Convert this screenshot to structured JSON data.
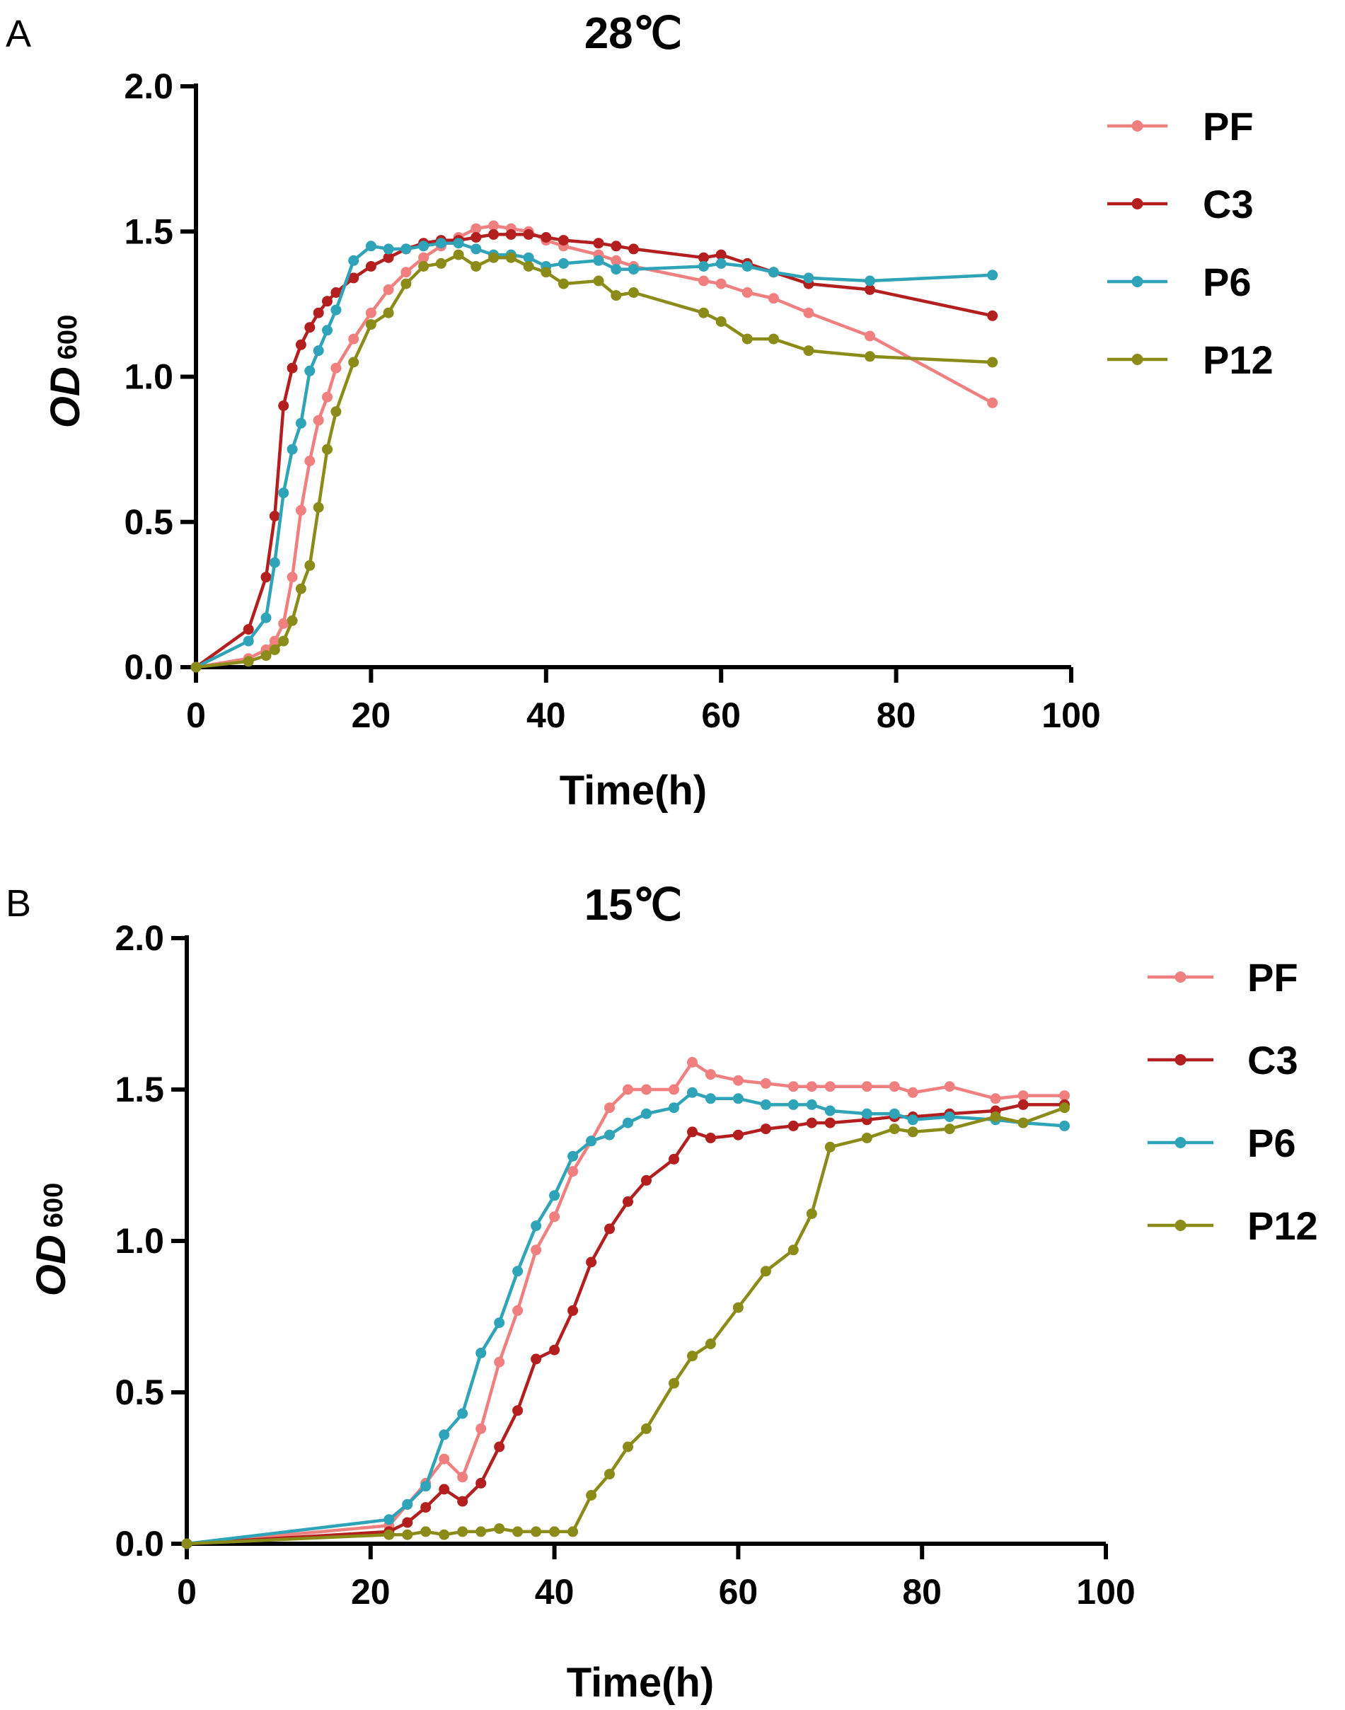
{
  "chart_data": [
    {
      "panel": "A",
      "type": "line",
      "title": "28℃",
      "xlabel": "Time(h)",
      "ylabel_main": "OD",
      "ylabel_sub": "600",
      "xlim": [
        0,
        100
      ],
      "ylim": [
        0,
        2
      ],
      "xticks": [
        "0",
        "20",
        "40",
        "60",
        "80",
        "100"
      ],
      "yticks": [
        "0.0",
        "0.5",
        "1.0",
        "1.5",
        "2.0"
      ],
      "legend": "right",
      "series": [
        {
          "name": "PF",
          "color": "#f08080",
          "x": [
            0,
            6,
            8,
            9,
            10,
            11,
            12,
            13,
            14,
            15,
            16,
            18,
            20,
            22,
            24,
            26,
            28,
            30,
            32,
            34,
            36,
            38,
            40,
            42,
            46,
            48,
            50,
            58,
            60,
            63,
            66,
            70,
            77,
            91
          ],
          "y": [
            0,
            0.03,
            0.06,
            0.09,
            0.15,
            0.31,
            0.54,
            0.71,
            0.85,
            0.93,
            1.03,
            1.13,
            1.22,
            1.3,
            1.36,
            1.41,
            1.45,
            1.48,
            1.51,
            1.52,
            1.51,
            1.5,
            1.47,
            1.45,
            1.42,
            1.4,
            1.38,
            1.33,
            1.32,
            1.29,
            1.27,
            1.22,
            1.14,
            0.91
          ]
        },
        {
          "name": "C3",
          "color": "#b31f1f",
          "x": [
            0,
            6,
            8,
            9,
            10,
            11,
            12,
            13,
            14,
            15,
            16,
            18,
            20,
            22,
            24,
            26,
            28,
            30,
            32,
            34,
            36,
            38,
            40,
            42,
            46,
            48,
            50,
            58,
            60,
            63,
            66,
            70,
            77,
            91
          ],
          "y": [
            0,
            0.13,
            0.31,
            0.52,
            0.9,
            1.03,
            1.11,
            1.17,
            1.22,
            1.26,
            1.29,
            1.34,
            1.38,
            1.41,
            1.44,
            1.46,
            1.47,
            1.47,
            1.48,
            1.49,
            1.49,
            1.49,
            1.48,
            1.47,
            1.46,
            1.45,
            1.44,
            1.41,
            1.42,
            1.39,
            1.36,
            1.32,
            1.3,
            1.21
          ]
        },
        {
          "name": "P6",
          "color": "#2fa3b8",
          "x": [
            0,
            6,
            8,
            9,
            10,
            11,
            12,
            13,
            14,
            15,
            16,
            18,
            20,
            22,
            24,
            26,
            28,
            30,
            32,
            34,
            36,
            38,
            40,
            42,
            46,
            48,
            50,
            58,
            60,
            63,
            66,
            70,
            77,
            91
          ],
          "y": [
            0,
            0.09,
            0.17,
            0.36,
            0.6,
            0.75,
            0.84,
            1.02,
            1.09,
            1.16,
            1.23,
            1.4,
            1.45,
            1.44,
            1.44,
            1.45,
            1.46,
            1.46,
            1.44,
            1.42,
            1.42,
            1.41,
            1.38,
            1.39,
            1.4,
            1.37,
            1.37,
            1.38,
            1.39,
            1.38,
            1.36,
            1.34,
            1.33,
            1.35
          ]
        },
        {
          "name": "P12",
          "color": "#8b8b1a",
          "x": [
            0,
            6,
            8,
            9,
            10,
            11,
            12,
            13,
            14,
            15,
            16,
            18,
            20,
            22,
            24,
            26,
            28,
            30,
            32,
            34,
            36,
            38,
            40,
            42,
            46,
            48,
            50,
            58,
            60,
            63,
            66,
            70,
            77,
            91
          ],
          "y": [
            0,
            0.02,
            0.04,
            0.06,
            0.09,
            0.16,
            0.27,
            0.35,
            0.55,
            0.75,
            0.88,
            1.05,
            1.18,
            1.22,
            1.32,
            1.38,
            1.39,
            1.42,
            1.38,
            1.41,
            1.41,
            1.38,
            1.36,
            1.32,
            1.33,
            1.28,
            1.29,
            1.22,
            1.19,
            1.13,
            1.13,
            1.09,
            1.07,
            1.05
          ]
        }
      ]
    },
    {
      "panel": "B",
      "type": "line",
      "title": "15℃",
      "xlabel": "Time(h)",
      "ylabel_main": "OD",
      "ylabel_sub": "600",
      "xlim": [
        0,
        100
      ],
      "ylim": [
        0,
        2
      ],
      "xticks": [
        "0",
        "20",
        "40",
        "60",
        "80",
        "100"
      ],
      "yticks": [
        "0.0",
        "0.5",
        "1.0",
        "1.5",
        "2.0"
      ],
      "legend": "right",
      "series": [
        {
          "name": "PF",
          "color": "#f08080",
          "x": [
            0,
            22,
            24,
            26,
            28,
            30,
            32,
            34,
            36,
            38,
            40,
            42,
            44,
            46,
            48,
            50,
            53,
            55,
            57,
            60,
            63,
            66,
            68,
            70,
            74,
            77,
            79,
            83,
            88,
            91,
            95.5
          ],
          "y": [
            0,
            0.06,
            0.13,
            0.2,
            0.28,
            0.22,
            0.38,
            0.6,
            0.77,
            0.97,
            1.08,
            1.23,
            1.33,
            1.44,
            1.5,
            1.5,
            1.5,
            1.59,
            1.55,
            1.53,
            1.52,
            1.51,
            1.51,
            1.51,
            1.51,
            1.51,
            1.49,
            1.51,
            1.47,
            1.48,
            1.48
          ]
        },
        {
          "name": "C3",
          "color": "#b31f1f",
          "x": [
            0,
            22,
            24,
            26,
            28,
            30,
            32,
            34,
            36,
            38,
            40,
            42,
            44,
            46,
            48,
            50,
            53,
            55,
            57,
            60,
            63,
            66,
            68,
            70,
            74,
            77,
            79,
            83,
            88,
            91,
            95.5
          ],
          "y": [
            0,
            0.04,
            0.07,
            0.12,
            0.18,
            0.14,
            0.2,
            0.32,
            0.44,
            0.61,
            0.64,
            0.77,
            0.93,
            1.04,
            1.13,
            1.2,
            1.27,
            1.36,
            1.34,
            1.35,
            1.37,
            1.38,
            1.39,
            1.39,
            1.4,
            1.41,
            1.41,
            1.42,
            1.43,
            1.45,
            1.45
          ]
        },
        {
          "name": "P6",
          "color": "#2fa3b8",
          "x": [
            0,
            22,
            24,
            26,
            28,
            30,
            32,
            34,
            36,
            38,
            40,
            42,
            44,
            46,
            48,
            50,
            53,
            55,
            57,
            60,
            63,
            66,
            68,
            70,
            74,
            77,
            79,
            83,
            88,
            91,
            95.5
          ],
          "y": [
            0,
            0.08,
            0.13,
            0.19,
            0.36,
            0.43,
            0.63,
            0.73,
            0.9,
            1.05,
            1.15,
            1.28,
            1.33,
            1.35,
            1.39,
            1.42,
            1.44,
            1.49,
            1.47,
            1.47,
            1.45,
            1.45,
            1.45,
            1.43,
            1.42,
            1.42,
            1.4,
            1.41,
            1.4,
            1.39,
            1.38
          ]
        },
        {
          "name": "P12",
          "color": "#8b8b1a",
          "x": [
            0,
            22,
            24,
            26,
            28,
            30,
            32,
            34,
            36,
            38,
            40,
            42,
            44,
            46,
            48,
            50,
            53,
            55,
            57,
            60,
            63,
            66,
            68,
            70,
            74,
            77,
            79,
            83,
            88,
            91,
            95.5
          ],
          "y": [
            0,
            0.03,
            0.03,
            0.04,
            0.03,
            0.04,
            0.04,
            0.05,
            0.04,
            0.04,
            0.04,
            0.04,
            0.16,
            0.23,
            0.32,
            0.38,
            0.53,
            0.62,
            0.66,
            0.78,
            0.9,
            0.97,
            1.09,
            1.31,
            1.34,
            1.37,
            1.36,
            1.37,
            1.41,
            1.39,
            1.44
          ]
        }
      ]
    }
  ]
}
